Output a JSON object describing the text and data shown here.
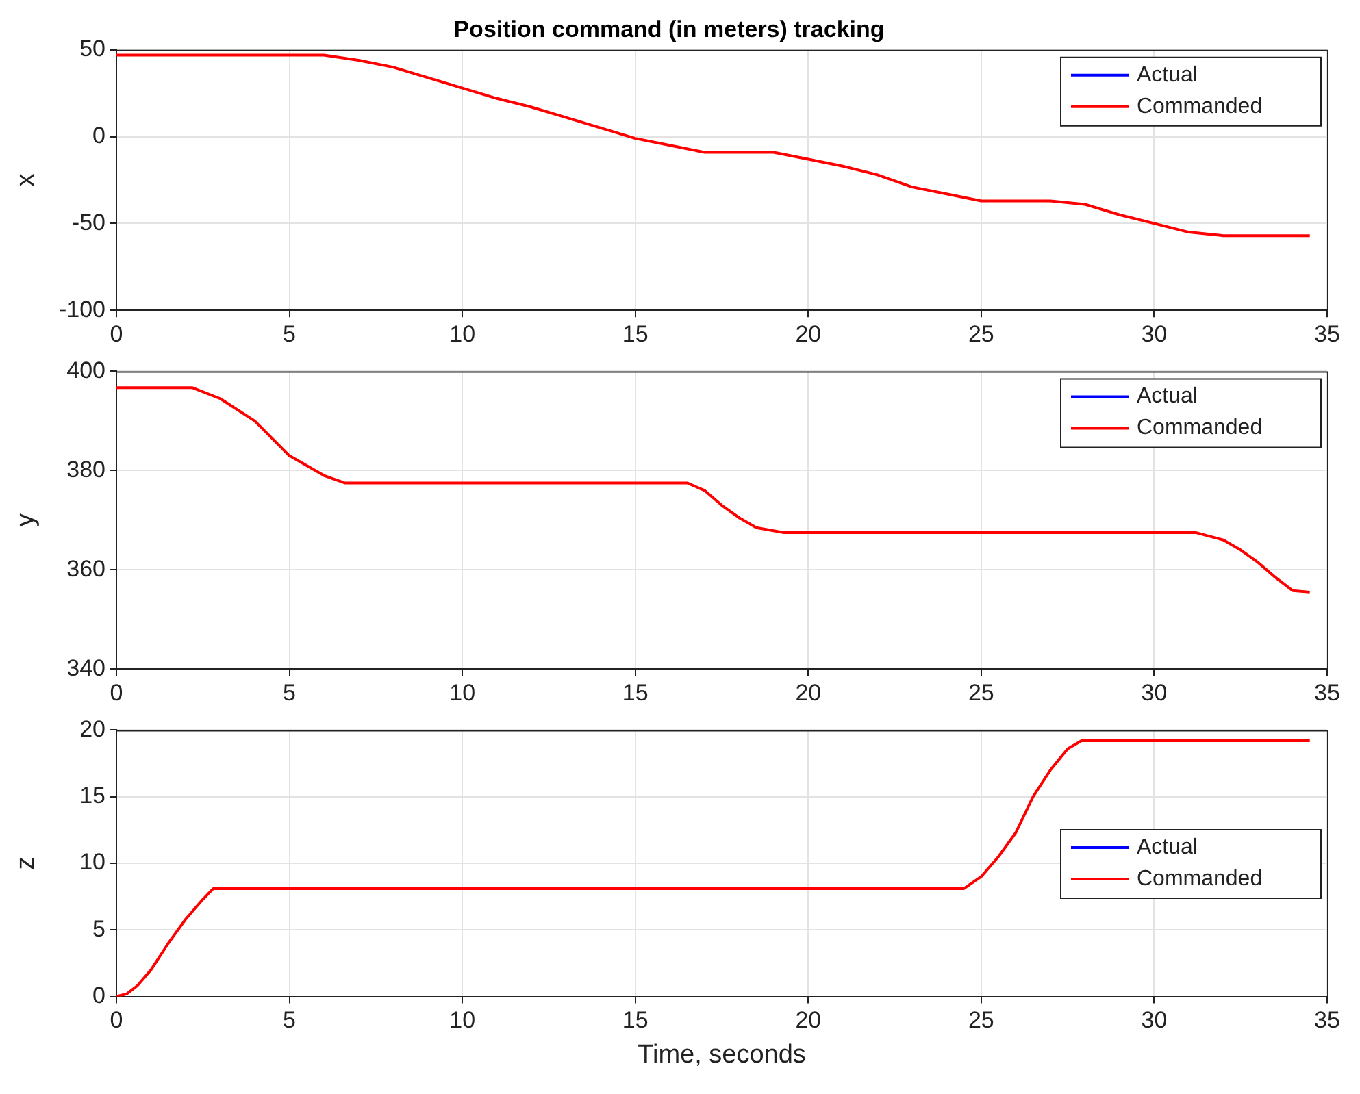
{
  "chart_data": [
    {
      "type": "line",
      "title": "Position command (in meters) tracking",
      "ylabel": "x",
      "xlim": [
        0,
        35
      ],
      "xticks": [
        0,
        5,
        10,
        15,
        20,
        25,
        30,
        35
      ],
      "ylim": [
        -100,
        50
      ],
      "yticks": [
        -100,
        -50,
        0,
        50
      ],
      "grid": true,
      "legend": "top right",
      "marker": "none",
      "x": [
        0,
        6,
        7,
        8,
        9,
        10,
        11,
        12,
        13,
        14,
        15,
        16,
        17,
        18,
        19,
        20,
        21,
        22,
        23,
        24,
        25,
        26,
        27,
        28,
        28.5,
        29,
        30,
        31,
        32,
        34.5
      ],
      "series": [
        {
          "name": "Actual",
          "color": "#0000ff",
          "values": [
            null,
            null,
            null,
            null,
            null,
            null,
            null,
            null,
            null,
            null,
            null,
            null,
            null,
            null,
            null,
            null,
            null,
            null,
            null,
            null,
            null,
            null,
            null,
            null,
            null,
            null,
            null,
            null,
            null,
            null
          ]
        },
        {
          "name": "Commanded",
          "color": "#ff0000",
          "values": [
            47,
            47,
            44,
            40,
            34,
            28,
            22,
            17,
            11,
            5,
            -1,
            -5,
            -9,
            -9,
            -9,
            -13,
            -17,
            -22,
            -29,
            -33,
            -37,
            -37,
            -37,
            -39,
            -42,
            -45,
            -50,
            -55,
            -57,
            -57
          ]
        }
      ]
    },
    {
      "type": "line",
      "ylabel": "y",
      "xlim": [
        0,
        35
      ],
      "xticks": [
        0,
        5,
        10,
        15,
        20,
        25,
        30,
        35
      ],
      "ylim": [
        340,
        400
      ],
      "yticks": [
        340,
        360,
        380,
        400
      ],
      "grid": true,
      "legend": "top right",
      "marker": "none",
      "x": [
        0,
        2.2,
        3,
        4,
        5,
        6,
        6.6,
        16.5,
        17,
        17.5,
        18,
        18.5,
        19.3,
        31.2,
        32,
        32.5,
        33,
        33.5,
        34,
        34.5
      ],
      "series": [
        {
          "name": "Actual",
          "color": "#0000ff",
          "values": [
            null,
            null,
            null,
            null,
            null,
            null,
            null,
            null,
            null,
            null,
            null,
            null,
            null,
            null,
            null,
            null,
            null,
            null,
            null,
            null
          ]
        },
        {
          "name": "Commanded",
          "color": "#ff0000",
          "values": [
            396.7,
            396.7,
            394.5,
            390,
            383,
            379,
            377.5,
            377.5,
            376,
            373,
            370.5,
            368.5,
            367.5,
            367.5,
            366,
            364,
            361.5,
            358.5,
            355.8,
            355.5
          ]
        }
      ]
    },
    {
      "type": "line",
      "xlabel": "Time, seconds",
      "ylabel": "z",
      "xlim": [
        0,
        35
      ],
      "xticks": [
        0,
        5,
        10,
        15,
        20,
        25,
        30,
        35
      ],
      "ylim": [
        0,
        20
      ],
      "yticks": [
        0,
        5,
        10,
        15,
        20
      ],
      "grid": true,
      "legend": "right",
      "marker": "none",
      "x": [
        0,
        0.3,
        0.6,
        1,
        1.5,
        2,
        2.5,
        2.8,
        24.5,
        25,
        25.5,
        26,
        26.5,
        27,
        27.5,
        27.9,
        34.5
      ],
      "series": [
        {
          "name": "Actual",
          "color": "#0000ff",
          "values": [
            null,
            null,
            null,
            null,
            null,
            null,
            null,
            null,
            null,
            null,
            null,
            null,
            null,
            null,
            null,
            null,
            null
          ]
        },
        {
          "name": "Commanded",
          "color": "#ff0000",
          "values": [
            0,
            0.2,
            0.8,
            2,
            4,
            5.8,
            7.3,
            8.1,
            8.1,
            9,
            10.5,
            12.3,
            15,
            17,
            18.6,
            19.2,
            19.2
          ]
        }
      ]
    }
  ]
}
